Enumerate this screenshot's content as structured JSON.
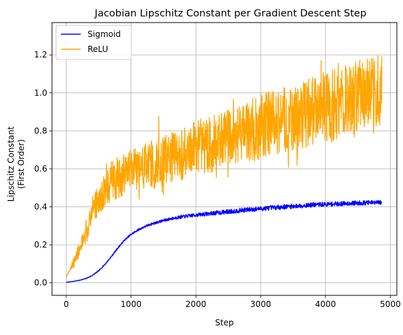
{
  "chart_data": {
    "type": "line",
    "title": "Jacobian Lipschitz Constant per Gradient Descent Step",
    "xlabel": "Step",
    "ylabel_lines": [
      "Lipschitz Constant",
      "(First Order)"
    ],
    "xlim": [
      -220,
      5100
    ],
    "ylim": [
      -0.066,
      1.37
    ],
    "xticks": [
      0,
      1000,
      2000,
      3000,
      4000,
      5000
    ],
    "yticks": [
      0.0,
      0.2,
      0.4,
      0.6,
      0.8,
      1.0,
      1.2
    ],
    "grid": true,
    "legend_position": "top-left",
    "series": [
      {
        "name": "Sigmoid",
        "color": "#0000ff",
        "noise": 0.012,
        "points": [
          [
            0,
            0.003
          ],
          [
            100,
            0.007
          ],
          [
            200,
            0.013
          ],
          [
            300,
            0.022
          ],
          [
            400,
            0.038
          ],
          [
            500,
            0.063
          ],
          [
            600,
            0.098
          ],
          [
            700,
            0.14
          ],
          [
            800,
            0.185
          ],
          [
            900,
            0.225
          ],
          [
            1000,
            0.255
          ],
          [
            1100,
            0.277
          ],
          [
            1200,
            0.294
          ],
          [
            1300,
            0.308
          ],
          [
            1400,
            0.318
          ],
          [
            1500,
            0.328
          ],
          [
            1600,
            0.336
          ],
          [
            1700,
            0.343
          ],
          [
            1800,
            0.348
          ],
          [
            1900,
            0.353
          ],
          [
            2000,
            0.357
          ],
          [
            2200,
            0.364
          ],
          [
            2400,
            0.371
          ],
          [
            2600,
            0.378
          ],
          [
            2800,
            0.385
          ],
          [
            3000,
            0.39
          ],
          [
            3200,
            0.396
          ],
          [
            3400,
            0.401
          ],
          [
            3600,
            0.405
          ],
          [
            3800,
            0.41
          ],
          [
            4000,
            0.413
          ],
          [
            4200,
            0.416
          ],
          [
            4400,
            0.419
          ],
          [
            4600,
            0.421
          ],
          [
            4870,
            0.423
          ]
        ]
      },
      {
        "name": "ReLU",
        "color": "#ffa500",
        "noise_fraction": 0.13,
        "points": [
          [
            0,
            0.03
          ],
          [
            100,
            0.1
          ],
          [
            200,
            0.17
          ],
          [
            300,
            0.26
          ],
          [
            400,
            0.36
          ],
          [
            500,
            0.44
          ],
          [
            600,
            0.5
          ],
          [
            700,
            0.53
          ],
          [
            800,
            0.55
          ],
          [
            1000,
            0.58
          ],
          [
            1200,
            0.61
          ],
          [
            1400,
            0.63
          ],
          [
            1600,
            0.66
          ],
          [
            1800,
            0.68
          ],
          [
            2000,
            0.71
          ],
          [
            2200,
            0.73
          ],
          [
            2400,
            0.75
          ],
          [
            2600,
            0.77
          ],
          [
            2800,
            0.8
          ],
          [
            3000,
            0.82
          ],
          [
            3200,
            0.84
          ],
          [
            3400,
            0.86
          ],
          [
            3600,
            0.88
          ],
          [
            3800,
            0.9
          ],
          [
            4000,
            0.92
          ],
          [
            4200,
            0.94
          ],
          [
            4400,
            0.96
          ],
          [
            4600,
            0.98
          ],
          [
            4870,
            1.0
          ]
        ]
      }
    ]
  }
}
